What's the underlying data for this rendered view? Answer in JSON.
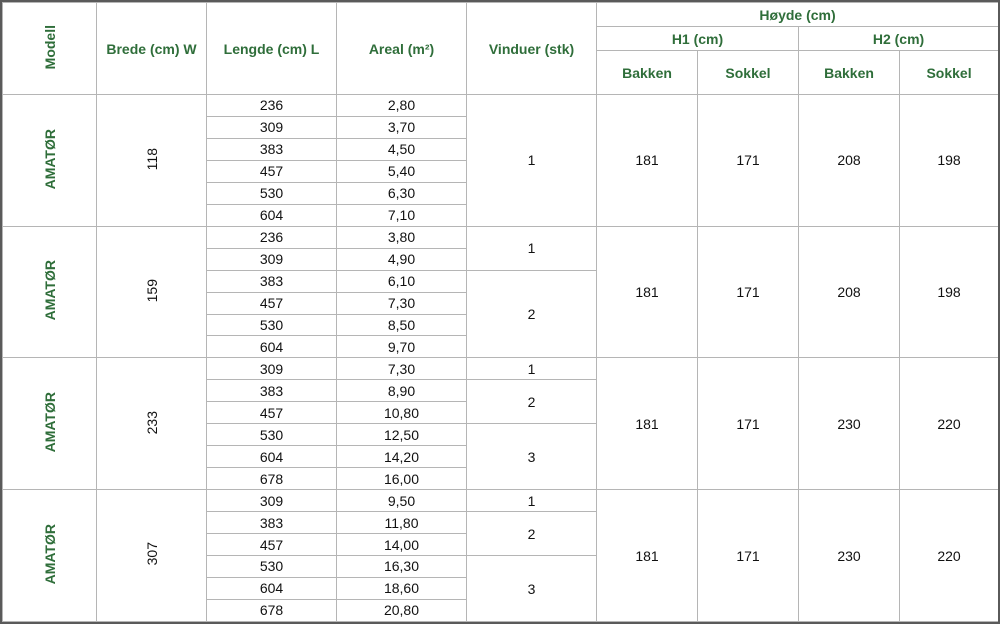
{
  "header": {
    "model": "Modell",
    "width": "Brede (cm) W",
    "length": "Lengde (cm) L",
    "area": "Areal (m²)",
    "windows": "Vinduer (stk)",
    "height": "Høyde (cm)",
    "h1": "H1 (cm)",
    "h2": "H2 (cm)",
    "h1_ground": "Bakken",
    "h1_base": "Sokkel",
    "h2_ground": "Bakken",
    "h2_base": "Sokkel"
  },
  "groups": [
    {
      "model": "AMATØR",
      "width": 118,
      "lengths": [
        236,
        309,
        383,
        457,
        530,
        604
      ],
      "areas": [
        "2,80",
        "3,70",
        "4,50",
        "5,40",
        "6,30",
        "7,10"
      ],
      "windows": [
        1,
        null,
        null,
        null,
        null,
        null
      ],
      "h1_ground": 181,
      "h1_base": 171,
      "h2_ground": 208,
      "h2_base": 198
    },
    {
      "model": "AMATØR",
      "width": 159,
      "lengths": [
        236,
        309,
        383,
        457,
        530,
        604
      ],
      "areas": [
        "3,80",
        "4,90",
        "6,10",
        "7,30",
        "8,50",
        "9,70"
      ],
      "windows": [
        1,
        null,
        2,
        null,
        null,
        null
      ],
      "h1_ground": 181,
      "h1_base": 171,
      "h2_ground": 208,
      "h2_base": 198
    },
    {
      "model": "AMATØR",
      "width": 233,
      "lengths": [
        309,
        383,
        457,
        530,
        604,
        678
      ],
      "areas": [
        "7,30",
        "8,90",
        "10,80",
        "12,50",
        "14,20",
        "16,00"
      ],
      "windows": [
        1,
        2,
        null,
        3,
        null,
        null
      ],
      "h1_ground": 181,
      "h1_base": 171,
      "h2_ground": 230,
      "h2_base": 220
    },
    {
      "model": "AMATØR",
      "width": 307,
      "lengths": [
        309,
        383,
        457,
        530,
        604,
        678
      ],
      "areas": [
        "9,50",
        "11,80",
        "14,00",
        "16,30",
        "18,60",
        "20,80"
      ],
      "windows": [
        1,
        2,
        null,
        3,
        null,
        null
      ],
      "h1_ground": 181,
      "h1_base": 171,
      "h2_ground": 230,
      "h2_base": 220
    }
  ]
}
